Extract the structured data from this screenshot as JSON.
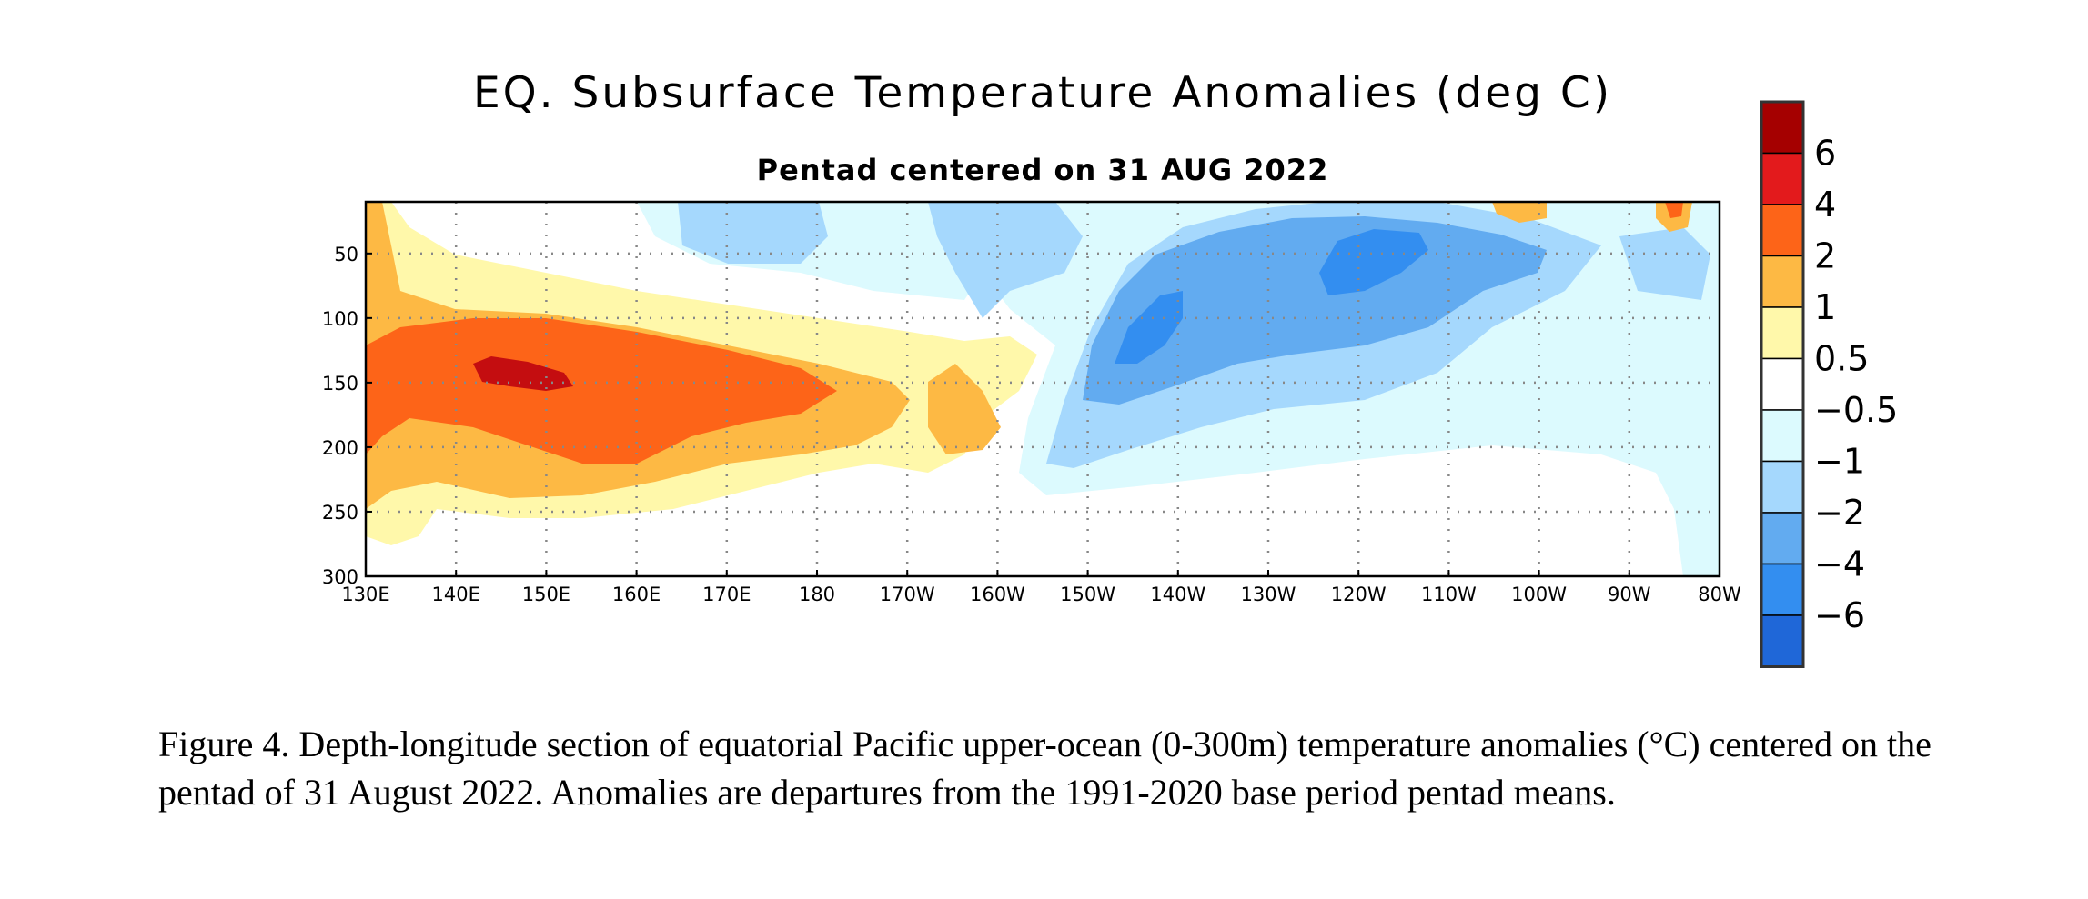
{
  "chart_data": {
    "type": "heatmap",
    "title": "EQ. Subsurface Temperature Anomalies (deg C)",
    "subtitle": "Pentad centered on 31 AUG 2022",
    "xlabel": "",
    "ylabel": "",
    "x_ticks": [
      "130E",
      "140E",
      "150E",
      "160E",
      "170E",
      "180",
      "170W",
      "160W",
      "150W",
      "140W",
      "130W",
      "120W",
      "110W",
      "100W",
      "90W",
      "80W"
    ],
    "x_tick_values": [
      130,
      140,
      150,
      160,
      170,
      180,
      190,
      200,
      210,
      220,
      230,
      240,
      250,
      260,
      270,
      280
    ],
    "xlim": [
      130,
      280
    ],
    "y_ticks": [
      "50",
      "100",
      "150",
      "200",
      "250",
      "300"
    ],
    "y_tick_values": [
      50,
      100,
      150,
      200,
      250,
      300
    ],
    "ylim": [
      300,
      10
    ],
    "grid": true,
    "colorbar": {
      "labels": [
        "6",
        "4",
        "2",
        "1",
        "0.5",
        "−0.5",
        "−1",
        "−2",
        "−4",
        "−6"
      ],
      "colors": [
        "#a50000",
        "#e31a1c",
        "#fd6418",
        "#fdb944",
        "#fff8aa",
        "#ffffff",
        "#dcfafe",
        "#a5d8fd",
        "#62abf0",
        "#338ef0",
        "#1f67d8"
      ]
    },
    "anomaly_features": [
      {
        "label": "warm core",
        "value": 6,
        "x": 146,
        "y": 145,
        "rx": 5,
        "ry": 10
      },
      {
        "label": "warm tongue",
        "value": 4,
        "x": 160,
        "y": 150,
        "rx": 22,
        "ry": 40
      },
      {
        "label": "cold core",
        "value": -4,
        "x": 243,
        "y": 55,
        "rx": 8,
        "ry": 18
      },
      {
        "label": "cold lobe",
        "value": -4,
        "x": 222,
        "y": 120,
        "rx": 8,
        "ry": 30
      },
      {
        "label": "cold region",
        "value": -2,
        "x": 235,
        "y": 120,
        "rx": 28,
        "ry": 70
      }
    ]
  },
  "caption": "Figure 4. Depth-longitude section of equatorial Pacific upper-ocean (0-300m) temperature anomalies (°C) centered on the pentad of 31 August 2022. Anomalies are departures from the 1991-2020 base period pentad means."
}
